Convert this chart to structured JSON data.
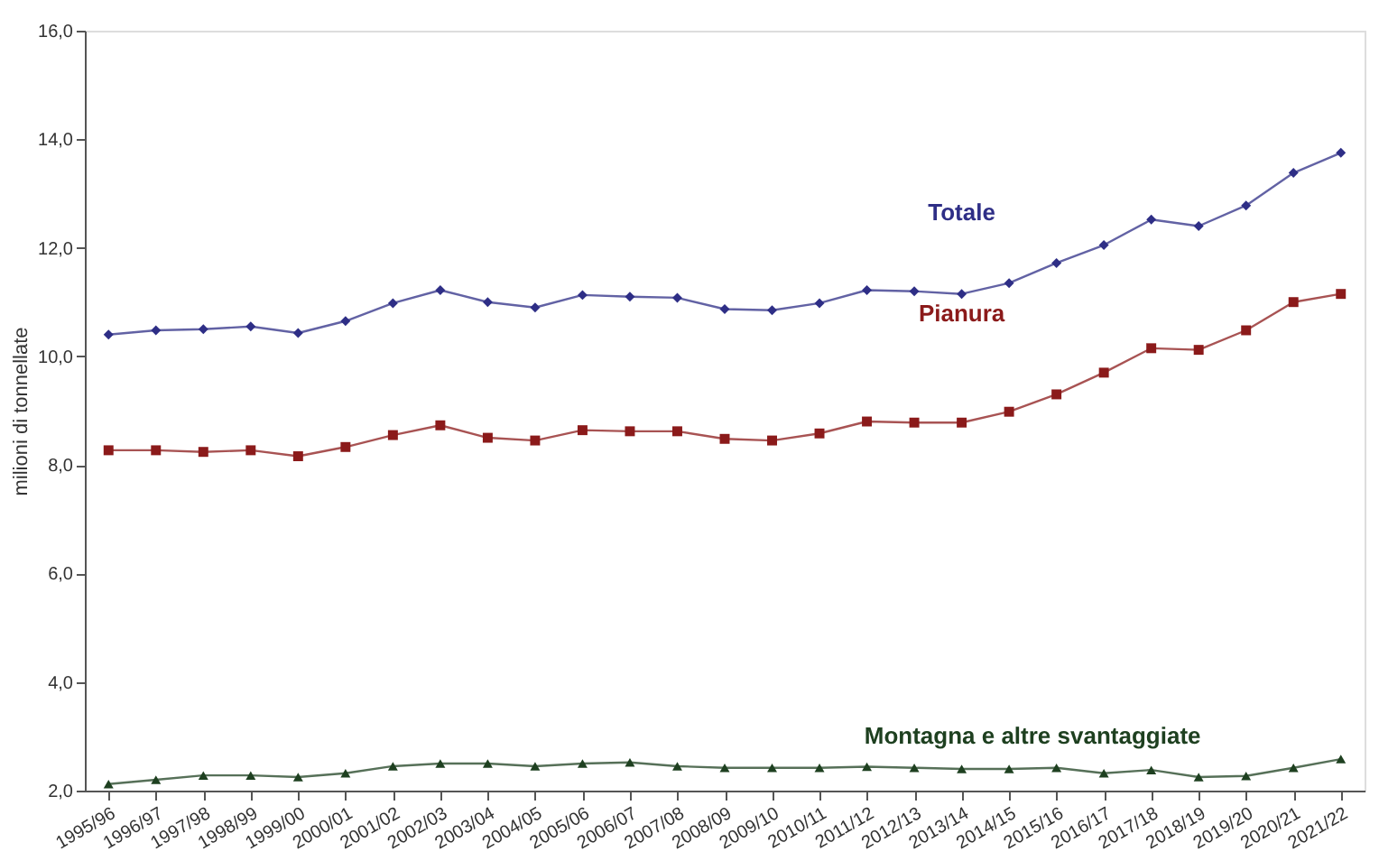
{
  "chart_data": {
    "type": "line",
    "ylabel": "milioni di tonnellate",
    "categories": [
      "1995/96",
      "1996/97",
      "1997/98",
      "1998/99",
      "1999/00",
      "2000/01",
      "2001/02",
      "2002/03",
      "2003/04",
      "2004/05",
      "2005/06",
      "2006/07",
      "2007/08",
      "2008/09",
      "2009/10",
      "2010/11",
      "2011/12",
      "2012/13",
      "2013/14",
      "2014/15",
      "2015/16",
      "2016/17",
      "2017/18",
      "2018/19",
      "2019/20",
      "2020/21",
      "2021/22"
    ],
    "series": [
      {
        "name": "Totale",
        "color": "#2e2e86",
        "marker": "diamond",
        "values": [
          10.4,
          10.48,
          10.5,
          10.55,
          10.43,
          10.65,
          10.98,
          11.22,
          11.0,
          10.9,
          11.13,
          11.1,
          11.08,
          10.87,
          10.85,
          10.98,
          11.22,
          11.2,
          11.15,
          11.35,
          11.72,
          12.05,
          12.52,
          12.4,
          12.78,
          13.38,
          13.75
        ]
      },
      {
        "name": "Pianura",
        "color": "#8b1a1a",
        "marker": "square",
        "values": [
          8.27,
          8.27,
          8.24,
          8.27,
          8.16,
          8.33,
          8.55,
          8.73,
          8.5,
          8.45,
          8.64,
          8.62,
          8.62,
          8.48,
          8.45,
          8.58,
          8.8,
          8.78,
          8.78,
          8.98,
          9.3,
          9.7,
          10.15,
          10.12,
          10.48,
          11.0,
          11.15
        ]
      },
      {
        "name": "Montagna e altre svantaggiate",
        "color": "#1e4020",
        "marker": "triangle",
        "values": [
          2.12,
          2.2,
          2.28,
          2.28,
          2.25,
          2.32,
          2.45,
          2.5,
          2.5,
          2.45,
          2.5,
          2.52,
          2.45,
          2.42,
          2.42,
          2.42,
          2.44,
          2.42,
          2.4,
          2.4,
          2.42,
          2.32,
          2.38,
          2.25,
          2.27,
          2.42,
          2.58
        ]
      }
    ],
    "ylim": [
      2.0,
      16.0
    ],
    "yticks": [
      {
        "value": 2,
        "label": "2,0"
      },
      {
        "value": 4,
        "label": "4,0"
      },
      {
        "value": 6,
        "label": "6,0"
      },
      {
        "value": 8,
        "label": "8,0"
      },
      {
        "value": 10,
        "label": "10,0"
      },
      {
        "value": 12,
        "label": "12,0"
      },
      {
        "value": 14,
        "label": "14,0"
      },
      {
        "value": 16,
        "label": "16,0"
      }
    ],
    "grid": false,
    "legend": false
  }
}
